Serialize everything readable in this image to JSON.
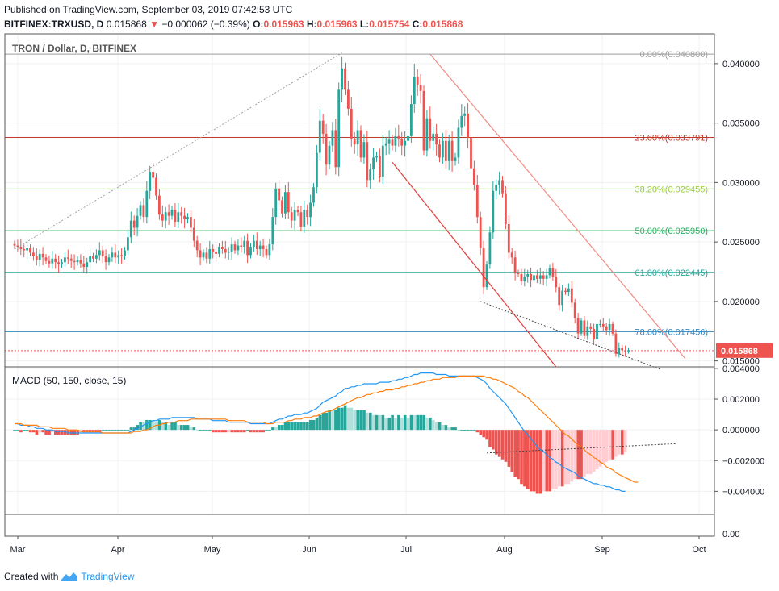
{
  "header": {
    "published": "Published on TradingView.com, September 03, 2019 07:42:53 UTC",
    "symbol": "BITFINEX:TRXUSD, D",
    "last": "0.015868",
    "change": "−0.000062 (−0.39%)",
    "o_label": "O:",
    "o": "0.015963",
    "h_label": "H:",
    "h": "0.015963",
    "l_label": "L:",
    "l": "0.015754",
    "c_label": "C:",
    "c": "0.015868"
  },
  "footer": {
    "created_with": "Created with",
    "brand": "TradingView"
  },
  "chart_data": [
    {
      "type": "candlestick",
      "title": "TRON / Dollar, D, BITFINEX",
      "ylim": [
        0.0145,
        0.0425
      ],
      "y_ticks": [
        "0.040000",
        "0.035000",
        "0.030000",
        "0.025000",
        "0.020000",
        "0.015000"
      ],
      "y_tick_values": [
        0.04,
        0.035,
        0.03,
        0.025,
        0.02,
        0.015
      ],
      "x_ticks": [
        "Mar",
        "Apr",
        "May",
        "Jun",
        "Jul",
        "Aug",
        "Sep",
        "Oct"
      ],
      "last_price_label": "0.015868",
      "last_price": 0.015868,
      "fib_levels": [
        {
          "label": "0.00%(0.040800)",
          "value": 0.0408,
          "color": "#9e9e9e"
        },
        {
          "label": "23.60%(0.033791)",
          "value": 0.033791,
          "color": "#c0392b"
        },
        {
          "label": "38.20%(0.029455)",
          "value": 0.029455,
          "color": "#9ccc3c"
        },
        {
          "label": "50.00%(0.025950)",
          "value": 0.02595,
          "color": "#27ae60"
        },
        {
          "label": "61.80%(0.022445)",
          "value": 0.022445,
          "color": "#26a69a"
        },
        {
          "label": "78.60%(0.017456)",
          "value": 0.017456,
          "color": "#2e86c1"
        }
      ],
      "closes": [
        0.0247,
        0.0246,
        0.0244,
        0.0243,
        0.0245,
        0.0241,
        0.0238,
        0.0235,
        0.024,
        0.0237,
        0.0234,
        0.0232,
        0.0236,
        0.0233,
        0.0231,
        0.0233,
        0.0237,
        0.0236,
        0.0234,
        0.0233,
        0.0235,
        0.0232,
        0.0229,
        0.0233,
        0.0238,
        0.0236,
        0.0239,
        0.0243,
        0.0238,
        0.0233,
        0.0237,
        0.0241,
        0.0237,
        0.0239,
        0.0238,
        0.0243,
        0.0254,
        0.0268,
        0.0262,
        0.0272,
        0.0281,
        0.0271,
        0.0293,
        0.0309,
        0.0304,
        0.0289,
        0.0273,
        0.0268,
        0.0275,
        0.0272,
        0.0277,
        0.0267,
        0.0275,
        0.0272,
        0.0269,
        0.0271,
        0.0262,
        0.0251,
        0.0243,
        0.0237,
        0.0241,
        0.0236,
        0.0244,
        0.0242,
        0.024,
        0.0246,
        0.0244,
        0.0241,
        0.0242,
        0.0248,
        0.0243,
        0.0247,
        0.0246,
        0.0251,
        0.0239,
        0.0246,
        0.0251,
        0.0244,
        0.0247,
        0.0244,
        0.0239,
        0.0248,
        0.0271,
        0.0295,
        0.0285,
        0.0274,
        0.0292,
        0.0275,
        0.0268,
        0.0277,
        0.0275,
        0.0263,
        0.0277,
        0.0271,
        0.0283,
        0.0296,
        0.0325,
        0.0352,
        0.0341,
        0.0315,
        0.0331,
        0.0344,
        0.0313,
        0.0378,
        0.0396,
        0.0378,
        0.0362,
        0.0337,
        0.0332,
        0.0344,
        0.0321,
        0.0334,
        0.0302,
        0.0311,
        0.0321,
        0.0322,
        0.0305,
        0.0331,
        0.0333,
        0.0336,
        0.0331,
        0.0339,
        0.0337,
        0.0331,
        0.0335,
        0.0339,
        0.0366,
        0.0389,
        0.0382,
        0.0377,
        0.0327,
        0.0354,
        0.0335,
        0.0341,
        0.0332,
        0.0321,
        0.0335,
        0.0318,
        0.0335,
        0.0318,
        0.0321,
        0.0346,
        0.0356,
        0.0358,
        0.0338,
        0.0312,
        0.0298,
        0.0271,
        0.0245,
        0.0212,
        0.0231,
        0.0258,
        0.0293,
        0.0298,
        0.0302,
        0.0291,
        0.0265,
        0.0241,
        0.0237,
        0.0224,
        0.0223,
        0.0217,
        0.0221,
        0.0223,
        0.0218,
        0.0222,
        0.0219,
        0.0222,
        0.0219,
        0.0222,
        0.0228,
        0.0221,
        0.0212,
        0.0197,
        0.0209,
        0.0208,
        0.0211,
        0.0199,
        0.0186,
        0.0173,
        0.0184,
        0.0171,
        0.0179,
        0.0177,
        0.0168,
        0.0181,
        0.0181,
        0.0179,
        0.0176,
        0.0181,
        0.0173,
        0.0156,
        0.0161,
        0.0159,
        0.0158,
        0.0159
      ],
      "lines": [
        {
          "from": [
            "0.0244",
            0
          ],
          "to": [
            "0.0409",
            104
          ]
        },
        {
          "from": [
            "0.0408",
            132
          ],
          "to": [
            "0.0152",
            213
          ]
        },
        {
          "from": [
            "0.0317",
            120
          ],
          "to": [
            "0.0138",
            172
          ]
        },
        {
          "from": [
            "0.0200",
            148
          ],
          "to": [
            "0.0143",
            205
          ]
        }
      ]
    },
    {
      "type": "line",
      "title": "MACD (50, 150, close, 15)",
      "ylim": [
        -0.0055,
        0.0041
      ],
      "y_ticks": [
        "0.004000",
        "0.002000",
        "0.000000",
        "−0.002000",
        "−0.004000"
      ],
      "y_tick_values": [
        0.004,
        0.002,
        0,
        -0.002,
        -0.004
      ],
      "lower_tick": "0.00",
      "series": [
        {
          "color": "#2196f3",
          "values": [
            0.0004,
            0.0004,
            0.0003,
            0.0003,
            0.0003,
            0.0002,
            0.0002,
            0.0001,
            0.0001,
            0.0001,
            0,
            0,
            0,
            -0.0001,
            -0.0001,
            -0.0001,
            -0.0001,
            -0.0002,
            -0.0002,
            -0.0002,
            -0.0002,
            -0.0002,
            -0.0002,
            -0.0002,
            -0.0002,
            -0.0002,
            -0.0002,
            -0.0002,
            -0.0002,
            -0.0002,
            -0.0002,
            -0.0002,
            -0.0002,
            -0.0002,
            -0.0002,
            -0.0002,
            -0.0002,
            -0.0001,
            0,
            0.0001,
            0.0002,
            0.0003,
            0.0004,
            0.0005,
            0.0006,
            0.0006,
            0.0007,
            0.0007,
            0.0007,
            0.0007,
            0.0008,
            0.0008,
            0.0008,
            0.0008,
            0.0008,
            0.0008,
            0.0008,
            0.0008,
            0.0007,
            0.0007,
            0.0007,
            0.0007,
            0.0007,
            0.0006,
            0.0006,
            0.0006,
            0.0006,
            0.0006,
            0.0005,
            0.0005,
            0.0005,
            0.0005,
            0.0005,
            0.0005,
            0.0005,
            0.0004,
            0.0004,
            0.0004,
            0.0004,
            0.0004,
            0.0004,
            0.0004,
            0.0005,
            0.0006,
            0.0007,
            0.0007,
            0.0008,
            0.0009,
            0.0009,
            0.001,
            0.001,
            0.001,
            0.0011,
            0.0011,
            0.0012,
            0.0013,
            0.0014,
            0.0016,
            0.0018,
            0.0019,
            0.002,
            0.0021,
            0.0022,
            0.0024,
            0.0025,
            0.0027,
            0.0027,
            0.0028,
            0.0028,
            0.0029,
            0.0029,
            0.003,
            0.003,
            0.003,
            0.003,
            0.003,
            0.0031,
            0.0031,
            0.0031,
            0.0031,
            0.0032,
            0.0032,
            0.0033,
            0.0033,
            0.0034,
            0.0034,
            0.0035,
            0.0036,
            0.0036,
            0.0037,
            0.0037,
            0.0037,
            0.0037,
            0.0037,
            0.0036,
            0.0036,
            0.0036,
            0.0036,
            0.0035,
            0.0035,
            0.0035,
            0.0035,
            0.0035,
            0.0035,
            0.0035,
            0.0035,
            0.0035,
            0.0034,
            0.0033,
            0.0032,
            0.003,
            0.0027,
            0.0025,
            0.0023,
            0.0021,
            0.0019,
            0.0017,
            0.0014,
            0.0011,
            0.0008,
            0.0005,
            0.0002,
            -0.0001,
            -0.0003,
            -0.0006,
            -0.0008,
            -0.0011,
            -0.0013,
            -0.0014,
            -0.0016,
            -0.0018,
            -0.0019,
            -0.0021,
            -0.0022,
            -0.0024,
            -0.0025,
            -0.0026,
            -0.0027,
            -0.0028,
            -0.003,
            -0.0031,
            -0.0032,
            -0.0033,
            -0.0034,
            -0.0035,
            -0.0035,
            -0.0036,
            -0.0036,
            -0.0037,
            -0.0037,
            -0.0038,
            -0.0039,
            -0.0039,
            -0.004,
            -0.004
          ]
        },
        {
          "color": "#ff7f0e",
          "values": [
            0.0004,
            0.0004,
            0.0004,
            0.0003,
            0.0003,
            0.0003,
            0.0003,
            0.0003,
            0.0002,
            0.0002,
            0.0002,
            0.0002,
            0.0001,
            0.0001,
            0.0001,
            0.0001,
            0.0001,
            0,
            0,
            0,
            0,
            -0.0001,
            -0.0001,
            -0.0001,
            -0.0001,
            -0.0001,
            -0.0001,
            -0.0001,
            -0.0002,
            -0.0002,
            -0.0002,
            -0.0002,
            -0.0002,
            -0.0002,
            -0.0002,
            -0.0002,
            -0.0002,
            -0.0002,
            -0.0001,
            -0.0001,
            -0.0001,
            0,
            0,
            0.0001,
            0.0002,
            0.0003,
            0.0003,
            0.0004,
            0.0004,
            0.0005,
            0.0005,
            0.0005,
            0.0006,
            0.0006,
            0.0006,
            0.0006,
            0.0007,
            0.0007,
            0.0007,
            0.0007,
            0.0007,
            0.0007,
            0.0007,
            0.0007,
            0.0007,
            0.0007,
            0.0007,
            0.0007,
            0.0006,
            0.0006,
            0.0006,
            0.0006,
            0.0006,
            0.0006,
            0.0005,
            0.0005,
            0.0005,
            0.0005,
            0.0005,
            0.0005,
            0.0004,
            0.0004,
            0.0004,
            0.0005,
            0.0005,
            0.0005,
            0.0005,
            0.0006,
            0.0006,
            0.0007,
            0.0007,
            0.0007,
            0.0008,
            0.0008,
            0.0008,
            0.0009,
            0.0009,
            0.001,
            0.0011,
            0.0012,
            0.0012,
            0.0013,
            0.0014,
            0.0015,
            0.0016,
            0.0017,
            0.0018,
            0.0019,
            0.002,
            0.0021,
            0.0021,
            0.0022,
            0.0023,
            0.0023,
            0.0024,
            0.0024,
            0.0025,
            0.0025,
            0.0026,
            0.0026,
            0.0026,
            0.0027,
            0.0027,
            0.0028,
            0.0028,
            0.0029,
            0.0029,
            0.003,
            0.003,
            0.0031,
            0.0031,
            0.0032,
            0.0032,
            0.0033,
            0.0033,
            0.0033,
            0.0034,
            0.0034,
            0.0034,
            0.0034,
            0.0034,
            0.0035,
            0.0035,
            0.0035,
            0.0035,
            0.0035,
            0.0035,
            0.0035,
            0.0035,
            0.0035,
            0.0034,
            0.0034,
            0.0033,
            0.0033,
            0.0032,
            0.0031,
            0.003,
            0.0029,
            0.0028,
            0.0027,
            0.0025,
            0.0024,
            0.0022,
            0.0021,
            0.0019,
            0.0017,
            0.0015,
            0.0013,
            0.0011,
            0.0009,
            0.0007,
            0.0005,
            0.0003,
            0.0001,
            -0.0001,
            -0.0003,
            -0.0004,
            -0.0006,
            -0.0008,
            -0.001,
            -0.0011,
            -0.0013,
            -0.0015,
            -0.0016,
            -0.0018,
            -0.0019,
            -0.0021,
            -0.0022,
            -0.0024,
            -0.0025,
            -0.0026,
            -0.0028,
            -0.0029,
            -0.003,
            -0.0031,
            -0.0032,
            -0.0033,
            -0.0034,
            -0.0034
          ]
        }
      ],
      "trendline": {
        "from": [
          "-0.0015",
          150
        ],
        "to": [
          "-0.0009",
          210
        ]
      }
    }
  ]
}
